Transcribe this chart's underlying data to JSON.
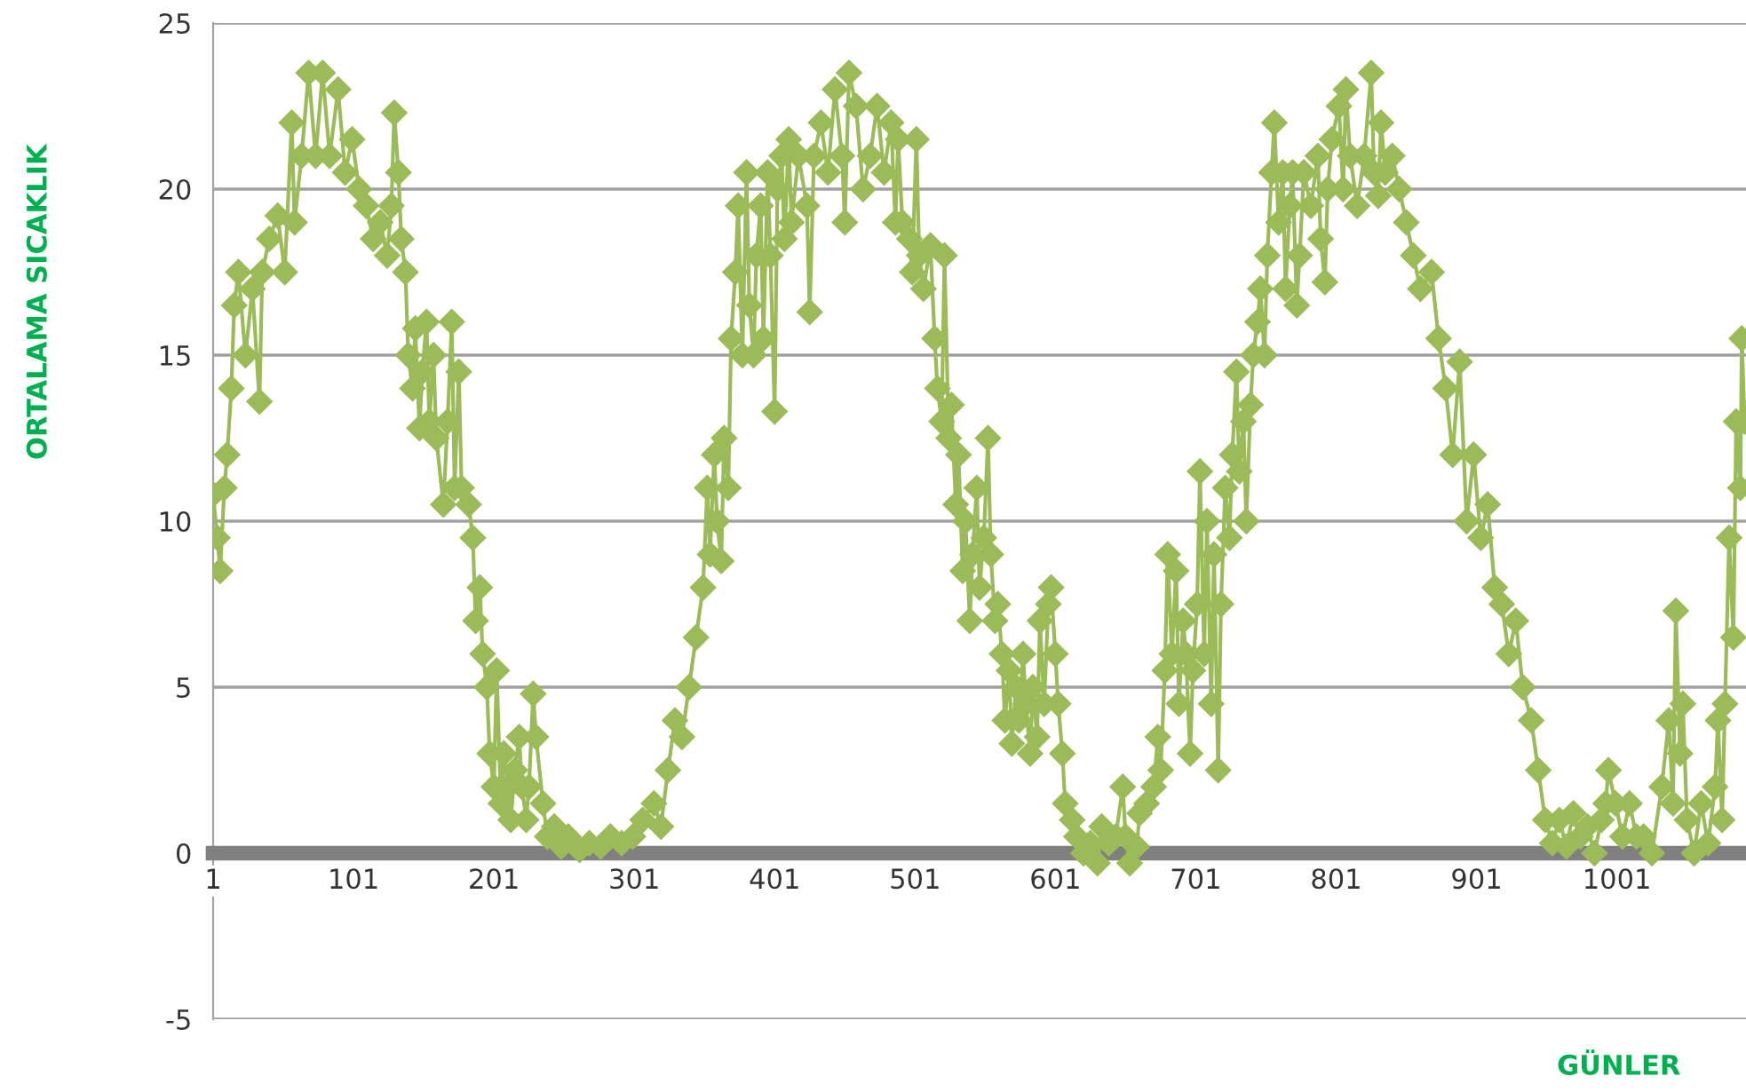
{
  "chart_data": {
    "type": "line",
    "xlabel": "GÜNLER",
    "ylabel": "ORTALAMA SICAKLIK",
    "xlim": [
      1,
      1093
    ],
    "xticks": [
      1,
      101,
      201,
      301,
      401,
      501,
      601,
      701,
      801,
      901,
      1001
    ],
    "ylim": [
      -5,
      25
    ],
    "yticks": [
      -5,
      0,
      5,
      10,
      15,
      20,
      25
    ],
    "grid": "y",
    "marker": "diamond",
    "line_style": "solid",
    "series": [
      {
        "color": "#9bbb59",
        "x": [
          1,
          4,
          6,
          9,
          11,
          14,
          16,
          19,
          24,
          29,
          34,
          36,
          41,
          47,
          52,
          57,
          59,
          64,
          69,
          74,
          79,
          84,
          90,
          95,
          100,
          105,
          110,
          115,
          120,
          125,
          128,
          130,
          133,
          135,
          138,
          140,
          143,
          145,
          148,
          150,
          153,
          155,
          158,
          160,
          165,
          168,
          171,
          173,
          176,
          178,
          183,
          186,
          188,
          191,
          193,
          196,
          198,
          201,
          203,
          206,
          208,
          211,
          213,
          216,
          219,
          221,
          224,
          226,
          229,
          231,
          236,
          239,
          244,
          249,
          254,
          262,
          269,
          277,
          284,
          292,
          300,
          307,
          315,
          320,
          325,
          330,
          335,
          340,
          345,
          350,
          353,
          355,
          358,
          360,
          363,
          365,
          368,
          370,
          373,
          375,
          378,
          381,
          383,
          386,
          388,
          391,
          393,
          396,
          398,
          401,
          403,
          406,
          408,
          411,
          413,
          418,
          424,
          426,
          429,
          434,
          439,
          444,
          449,
          451,
          454,
          459,
          464,
          469,
          474,
          479,
          484,
          487,
          489,
          492,
          497,
          499,
          502,
          504,
          507,
          512,
          515,
          517,
          520,
          522,
          525,
          527,
          530,
          532,
          535,
          537,
          540,
          542,
          545,
          547,
          550,
          553,
          555,
          558,
          560,
          563,
          565,
          568,
          570,
          573,
          575,
          578,
          580,
          583,
          585,
          588,
          590,
          593,
          596,
          598,
          601,
          603,
          606,
          608,
          613,
          616,
          621,
          626,
          631,
          634,
          639,
          644,
          649,
          651,
          654,
          659,
          661,
          666,
          671,
          674,
          676,
          679,
          681,
          684,
          687,
          689,
          692,
          694,
          697,
          699,
          702,
          704,
          707,
          709,
          712,
          714,
          717,
          719,
          722,
          725,
          727,
          730,
          732,
          735,
          737,
          740,
          742,
          745,
          747,
          750,
          752,
          755,
          757,
          760,
          763,
          765,
          768,
          770,
          773,
          775,
          778,
          783,
          788,
          790,
          793,
          795,
          798,
          803,
          806,
          808,
          811,
          816,
          821,
          826,
          828,
          831,
          833,
          836,
          841,
          846,
          851,
          856,
          861,
          869,
          874,
          879,
          884,
          889,
          894,
          899,
          904,
          909,
          914,
          919,
          924,
          929,
          934,
          940,
          945,
          950,
          955,
          960,
          965,
          970,
          975,
          980,
          985,
          990,
          993,
          995,
          1000,
          1005,
          1010,
          1015,
          1020,
          1026,
          1033,
          1038,
          1041,
          1043,
          1046,
          1048,
          1051,
          1056,
          1061,
          1066,
          1071,
          1073,
          1076,
          1078,
          1081,
          1084,
          1086,
          1089,
          1090,
          1092
        ],
        "values": [
          10.8,
          9.5,
          8.5,
          11,
          12,
          14,
          16.5,
          17.5,
          15,
          17,
          13.6,
          17.5,
          18.5,
          19.2,
          17.5,
          22,
          19,
          21,
          23.5,
          21,
          23.5,
          21,
          23,
          20.5,
          21.5,
          20,
          19.5,
          18.5,
          19,
          18,
          19.5,
          22.3,
          20.5,
          18.5,
          17.5,
          15,
          14,
          15.8,
          12.8,
          14.5,
          16,
          13,
          15,
          12.5,
          10.5,
          13,
          16,
          11,
          14.5,
          11,
          10.5,
          9.5,
          7,
          8,
          6,
          5,
          3,
          2,
          5.5,
          1.5,
          3,
          2,
          1,
          2.5,
          3.5,
          2,
          1,
          2,
          4.8,
          3.5,
          1.5,
          0.5,
          0.8,
          0.2,
          0.5,
          0.1,
          0.3,
          0.2,
          0.5,
          0.3,
          0.5,
          1,
          1.5,
          0.8,
          2.5,
          4,
          3.5,
          5,
          6.5,
          8,
          11,
          9,
          12,
          10,
          8.8,
          12.5,
          11,
          15.5,
          17.5,
          19.5,
          15,
          20.5,
          16.5,
          15,
          18,
          19.5,
          15.5,
          20.5,
          18,
          13.3,
          20,
          21,
          18.5,
          21.5,
          19,
          21,
          19.5,
          16.3,
          21,
          22,
          20.5,
          23,
          21,
          19,
          23.5,
          22.5,
          20,
          21,
          22.5,
          20.5,
          22,
          19,
          21.5,
          19,
          18.5,
          17.5,
          21.5,
          18,
          17,
          18.3,
          15.5,
          14,
          13,
          18,
          12.5,
          13.5,
          10.5,
          12,
          8.5,
          10,
          7,
          9,
          11,
          8,
          9.5,
          12.5,
          9,
          7,
          7.5,
          6,
          4,
          5.5,
          3.3,
          5,
          4,
          6,
          4.5,
          3,
          5,
          3.5,
          7,
          4.5,
          7.5,
          8,
          6,
          4.5,
          3,
          1.5,
          1,
          0.5,
          0,
          0.3,
          -0.3,
          0.8,
          0.3,
          0.5,
          2,
          0.5,
          -0.3,
          0.2,
          1.2,
          1.5,
          2,
          3.5,
          2.5,
          5.5,
          9,
          6,
          8.5,
          4.5,
          7,
          6,
          3,
          5.5,
          7.5,
          11.5,
          6,
          10,
          4.5,
          9,
          2.5,
          7.5,
          11,
          9.5,
          12,
          14.5,
          11.5,
          13,
          10,
          13.5,
          15,
          16,
          17,
          15,
          18,
          20.5,
          22,
          19,
          20.5,
          17,
          19.5,
          20.5,
          16.5,
          18,
          20.5,
          19.5,
          21,
          18.5,
          17.2,
          20,
          21.5,
          22.5,
          20,
          23,
          21,
          19.5,
          21,
          23.5,
          20.5,
          19.8,
          22,
          20.5,
          21,
          20,
          19,
          18,
          17,
          17.5,
          15.5,
          14,
          12,
          14.8,
          10,
          12,
          9.5,
          10.5,
          8,
          7.5,
          6,
          7,
          5,
          4,
          2.5,
          1,
          0.3,
          1,
          0.2,
          1.2,
          0.5,
          0.8,
          0,
          1,
          1.5,
          2.5,
          1.5,
          0.5,
          1.5,
          0.5,
          0.5,
          0,
          2,
          4,
          1.5,
          7.3,
          3,
          4.5,
          1,
          0,
          1.5,
          0.3,
          2,
          4,
          1,
          4.5,
          9.5,
          6.5,
          13,
          11,
          15.5,
          13
        ]
      }
    ]
  }
}
